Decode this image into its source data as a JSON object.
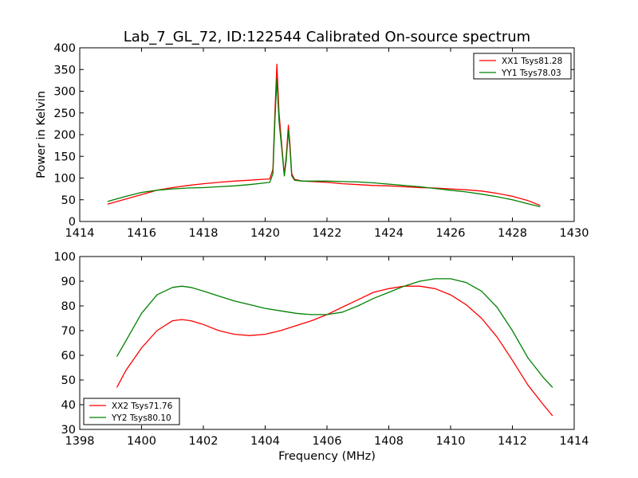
{
  "figure": {
    "title": "Lab_7_GL_72, ID:122544 Calibrated On-source spectrum"
  },
  "chart_data": [
    {
      "type": "line",
      "title": "Lab_7_GL_72, ID:122544 Calibrated On-source spectrum",
      "xlabel": "",
      "ylabel": "Power in Kelvin",
      "xlim": [
        1414,
        1430
      ],
      "ylim": [
        0,
        400
      ],
      "xticks": [
        "1414",
        "1416",
        "1418",
        "1420",
        "1422",
        "1424",
        "1426",
        "1428",
        "1430"
      ],
      "yticks": [
        "0",
        "50",
        "100",
        "150",
        "200",
        "250",
        "300",
        "350",
        "400"
      ],
      "grid": false,
      "legend_position": "top-right",
      "series": [
        {
          "name": "XX1 Tsys81.28",
          "color": "#ff0000",
          "x": [
            1414.9,
            1415.5,
            1416.0,
            1416.5,
            1417.0,
            1417.5,
            1418.0,
            1418.5,
            1419.0,
            1419.5,
            1419.9,
            1420.15,
            1420.25,
            1420.32,
            1420.38,
            1420.45,
            1420.55,
            1420.62,
            1420.68,
            1420.75,
            1420.8,
            1420.86,
            1420.95,
            1421.2,
            1421.5,
            1422.0,
            1422.5,
            1423.0,
            1423.5,
            1424.0,
            1424.5,
            1425.0,
            1425.5,
            1426.0,
            1426.5,
            1427.0,
            1427.5,
            1428.0,
            1428.5,
            1428.9
          ],
          "y": [
            40,
            52,
            62,
            72,
            78,
            83,
            87,
            90,
            93,
            95,
            97,
            98,
            120,
            260,
            362,
            250,
            165,
            108,
            150,
            222,
            180,
            110,
            97,
            93,
            92,
            90,
            87,
            85,
            83,
            82,
            80,
            78,
            77,
            75,
            73,
            70,
            65,
            58,
            48,
            37
          ]
        },
        {
          "name": "YY1 Tsys78.03",
          "color": "#008000",
          "x": [
            1414.9,
            1415.5,
            1416.0,
            1416.5,
            1417.0,
            1417.5,
            1418.0,
            1418.5,
            1419.0,
            1419.5,
            1419.9,
            1420.15,
            1420.25,
            1420.32,
            1420.38,
            1420.45,
            1420.55,
            1420.62,
            1420.68,
            1420.75,
            1420.8,
            1420.86,
            1420.95,
            1421.2,
            1421.5,
            1422.0,
            1422.5,
            1423.0,
            1423.5,
            1424.0,
            1424.5,
            1425.0,
            1425.5,
            1426.0,
            1426.5,
            1427.0,
            1427.5,
            1428.0,
            1428.5,
            1428.9
          ],
          "y": [
            46,
            58,
            67,
            72,
            75,
            77,
            78,
            80,
            82,
            85,
            88,
            90,
            110,
            240,
            328,
            230,
            158,
            105,
            140,
            210,
            170,
            105,
            95,
            93,
            93,
            93,
            92,
            91,
            89,
            86,
            83,
            80,
            76,
            72,
            68,
            63,
            57,
            50,
            41,
            34
          ]
        }
      ]
    },
    {
      "type": "line",
      "title": "",
      "xlabel": "Frequency (MHz)",
      "ylabel": "",
      "xlim": [
        1398,
        1414
      ],
      "ylim": [
        30,
        100
      ],
      "xticks": [
        "1398",
        "1400",
        "1402",
        "1404",
        "1406",
        "1408",
        "1410",
        "1412",
        "1414"
      ],
      "yticks": [
        "30",
        "40",
        "50",
        "60",
        "70",
        "80",
        "90",
        "100"
      ],
      "grid": false,
      "legend_position": "bottom-left",
      "series": [
        {
          "name": "XX2 Tsys71.76",
          "color": "#ff0000",
          "x": [
            1399.2,
            1399.5,
            1400.0,
            1400.5,
            1401.0,
            1401.3,
            1401.6,
            1402.0,
            1402.5,
            1403.0,
            1403.5,
            1404.0,
            1404.5,
            1405.0,
            1405.5,
            1406.0,
            1406.5,
            1407.0,
            1407.5,
            1408.0,
            1408.5,
            1409.0,
            1409.5,
            1410.0,
            1410.5,
            1411.0,
            1411.5,
            1412.0,
            1412.5,
            1413.0,
            1413.3
          ],
          "y": [
            47,
            54,
            63,
            70,
            74,
            74.5,
            74,
            72.5,
            70,
            68.5,
            68,
            68.5,
            70,
            72,
            74,
            76.5,
            79.5,
            82.5,
            85.5,
            87,
            88,
            88,
            87,
            84.5,
            80.5,
            75,
            67.5,
            58,
            48,
            40,
            35.5
          ]
        },
        {
          "name": "YY2 Tsys80.10",
          "color": "#008000",
          "x": [
            1399.2,
            1399.5,
            1400.0,
            1400.5,
            1401.0,
            1401.3,
            1401.6,
            1402.0,
            1402.5,
            1403.0,
            1403.5,
            1404.0,
            1404.5,
            1405.0,
            1405.5,
            1406.0,
            1406.5,
            1407.0,
            1407.5,
            1408.0,
            1408.5,
            1409.0,
            1409.5,
            1410.0,
            1410.5,
            1411.0,
            1411.5,
            1412.0,
            1412.5,
            1413.0,
            1413.3
          ],
          "y": [
            59.5,
            66,
            77,
            84.5,
            87.5,
            88,
            87.5,
            86,
            84,
            82,
            80.5,
            79,
            78,
            77,
            76.5,
            76.5,
            77.5,
            80,
            83,
            85.5,
            88,
            90,
            91,
            91,
            89.5,
            86,
            79.5,
            70,
            59,
            51,
            47
          ]
        }
      ]
    }
  ]
}
